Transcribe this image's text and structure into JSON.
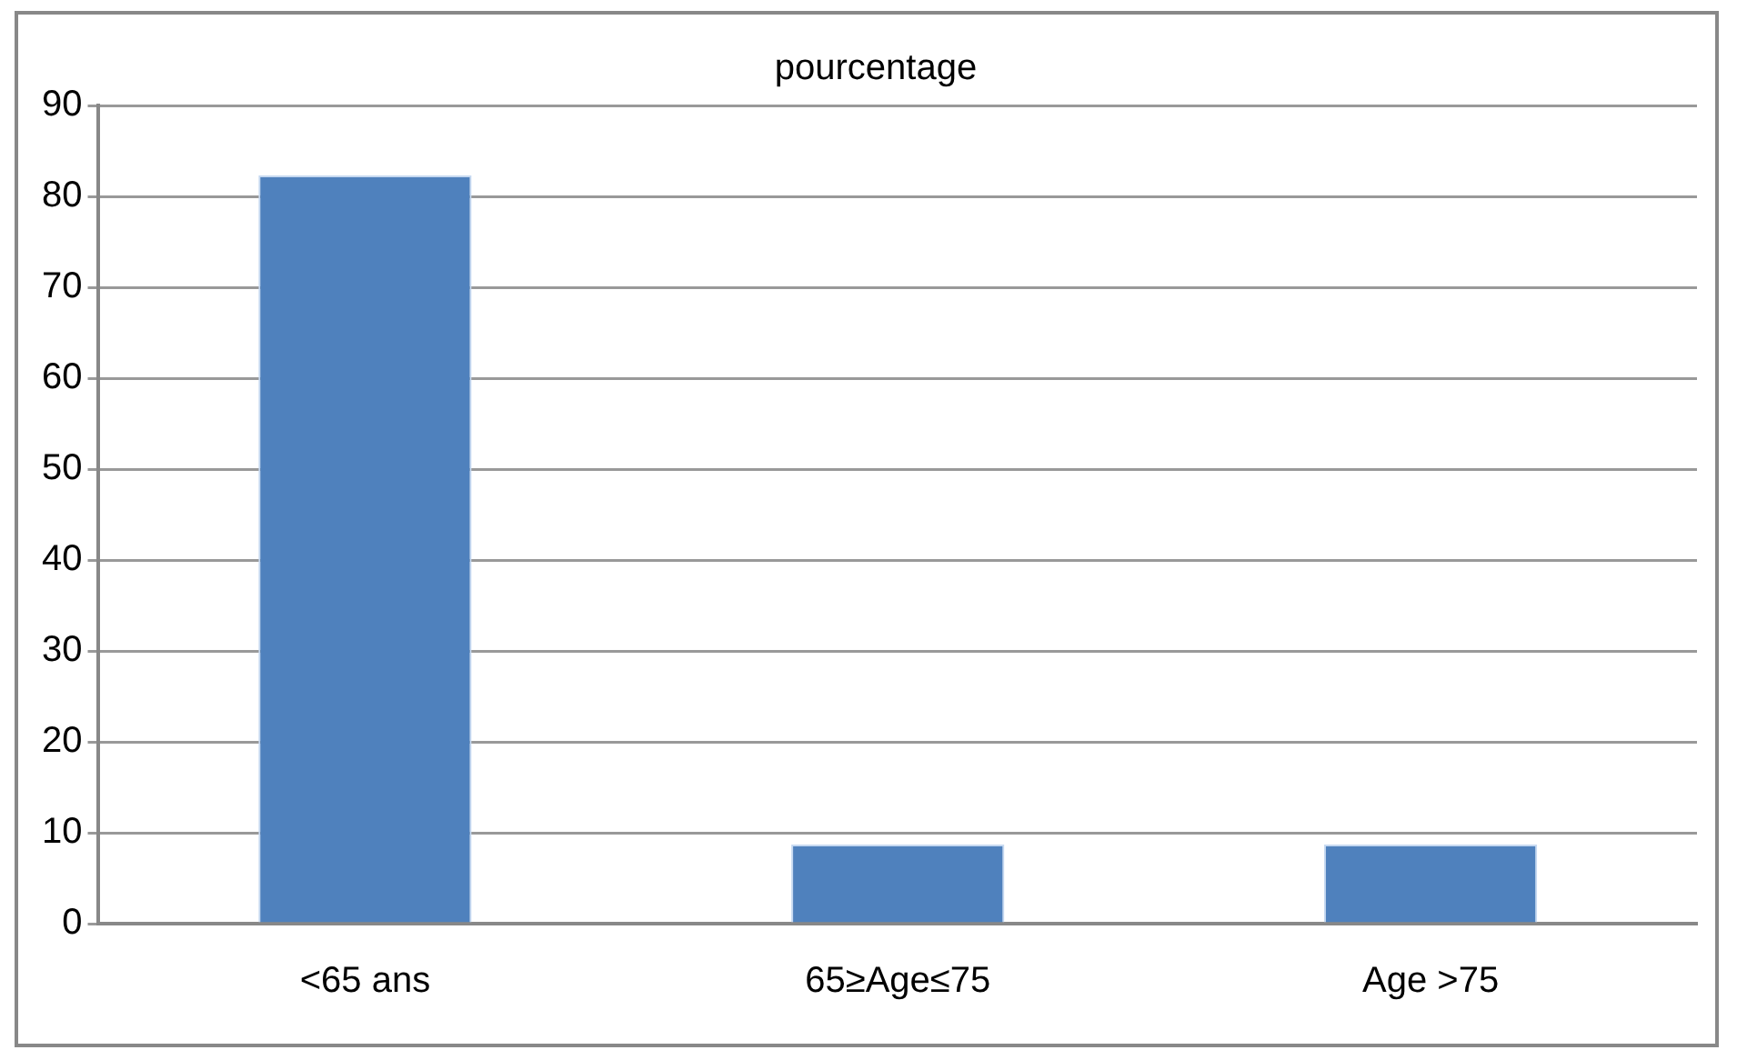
{
  "chart_data": {
    "type": "bar",
    "categories": [
      "<65 ans",
      "65≥Age≤75",
      "Age >75"
    ],
    "series": [
      {
        "name": "pourcentage",
        "color": "#4f81bd",
        "values": [
          82.3,
          8.7,
          8.7
        ]
      }
    ],
    "ylim": [
      0,
      90
    ],
    "yticks": [
      0,
      10,
      20,
      30,
      40,
      50,
      60,
      70,
      80,
      90
    ],
    "grid": "y",
    "legend": "top"
  }
}
